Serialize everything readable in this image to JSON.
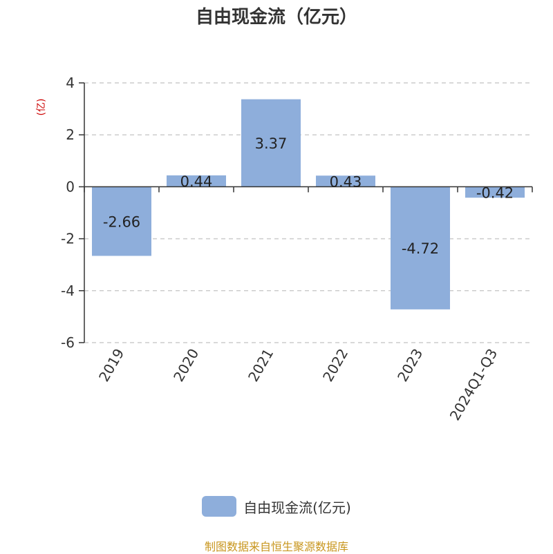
{
  "chart_data": {
    "type": "bar",
    "title": "自由现金流（亿元）",
    "ylabel": "(亿)",
    "categories": [
      "2019",
      "2020",
      "2021",
      "2022",
      "2023",
      "2024Q1-Q3"
    ],
    "series": [
      {
        "name": "自由现金流(亿元)",
        "values": [
          -2.66,
          0.44,
          3.37,
          0.43,
          -4.72,
          -0.42
        ]
      }
    ],
    "data_labels": [
      "-2.66",
      "0.44",
      "3.37",
      "0.43",
      "-4.72",
      "-0.42"
    ],
    "yticks": [
      "4",
      "2",
      "0",
      "-2",
      "-4",
      "-6"
    ],
    "ylim": [
      -6,
      4
    ],
    "grid": true,
    "legend_position": "bottom",
    "colors": {
      "bar": "#8eaedb",
      "ylabel": "#cc0000",
      "grid": "#cccccc",
      "axis": "#333333"
    }
  },
  "source_note": "制图数据来自恒生聚源数据库"
}
